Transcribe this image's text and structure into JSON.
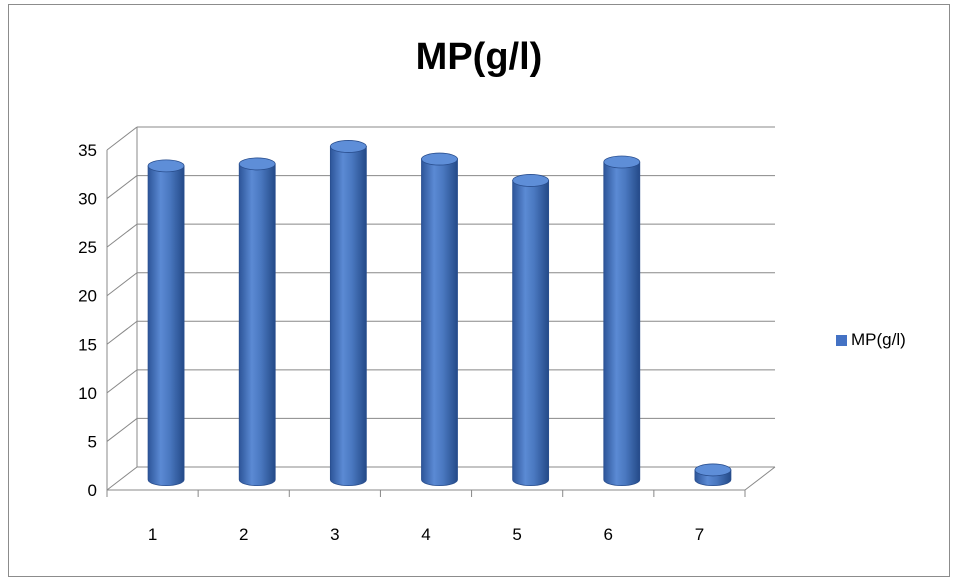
{
  "chart_data": {
    "type": "bar",
    "title": "MP(g/l)",
    "categories": [
      "1",
      "2",
      "3",
      "4",
      "5",
      "6",
      "7"
    ],
    "series": [
      {
        "name": "MP(g/l)",
        "values": [
          32.3,
          32.5,
          34.3,
          33.0,
          30.8,
          32.7,
          1.0
        ]
      }
    ],
    "ylim": [
      0,
      35
    ],
    "yticks": [
      "0",
      "5",
      "10",
      "15",
      "20",
      "25",
      "30",
      "35"
    ],
    "grid": true,
    "legend_position": "right",
    "bar_color": "#4472C4"
  }
}
